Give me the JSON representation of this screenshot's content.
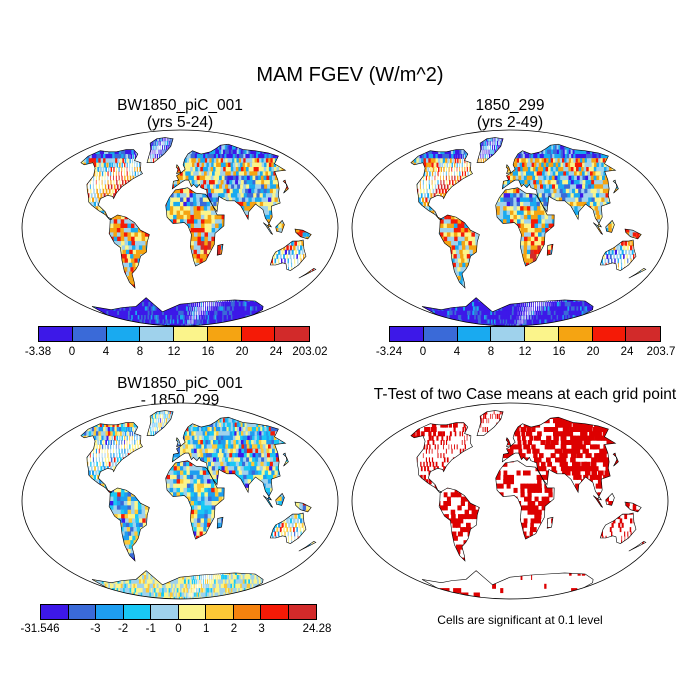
{
  "title": "MAM FGEV (W/m^2)",
  "panels": [
    {
      "id": "p1",
      "title_lines": [
        "BW1850_piC_001",
        "(yrs 5-24)"
      ],
      "colors": [
        "#3d18e8",
        "#3a6ad8",
        "#19aaf0",
        "#9fd2ec",
        "#fbf48b",
        "#f5a412",
        "#f51a06",
        "#d22a2a"
      ],
      "tick_labels": [
        "-3.38",
        "0",
        "4",
        "8",
        "12",
        "16",
        "20",
        "24",
        "203.02"
      ]
    },
    {
      "id": "p2",
      "title_lines": [
        "1850_299",
        "(yrs 2-49)"
      ],
      "colors": [
        "#3d18e8",
        "#3a6ad8",
        "#19aaf0",
        "#9fd2ec",
        "#fbf48b",
        "#f5a412",
        "#f51a06",
        "#d22a2a"
      ],
      "tick_labels": [
        "-3.24",
        "0",
        "4",
        "8",
        "12",
        "16",
        "20",
        "24",
        "203.7"
      ]
    },
    {
      "id": "p3",
      "title_lines": [
        "BW1850_piC_001",
        "- 1850_299"
      ],
      "colors": [
        "#3d18e8",
        "#3a6ad8",
        "#1e9ef0",
        "#19c8f5",
        "#9fd2ec",
        "#fbf48b",
        "#fdc836",
        "#f5820e",
        "#f51a06",
        "#d22a2a"
      ],
      "tick_labels": [
        "-31.546",
        "-3",
        "-2",
        "-1",
        "0",
        "1",
        "2",
        "3",
        "24.28"
      ]
    },
    {
      "id": "p4",
      "title_lines": [
        "T-Test of two Case means at each grid point"
      ],
      "significance_color": "#dd0000",
      "note": "Cells are significant at 0.1 level"
    }
  ]
}
